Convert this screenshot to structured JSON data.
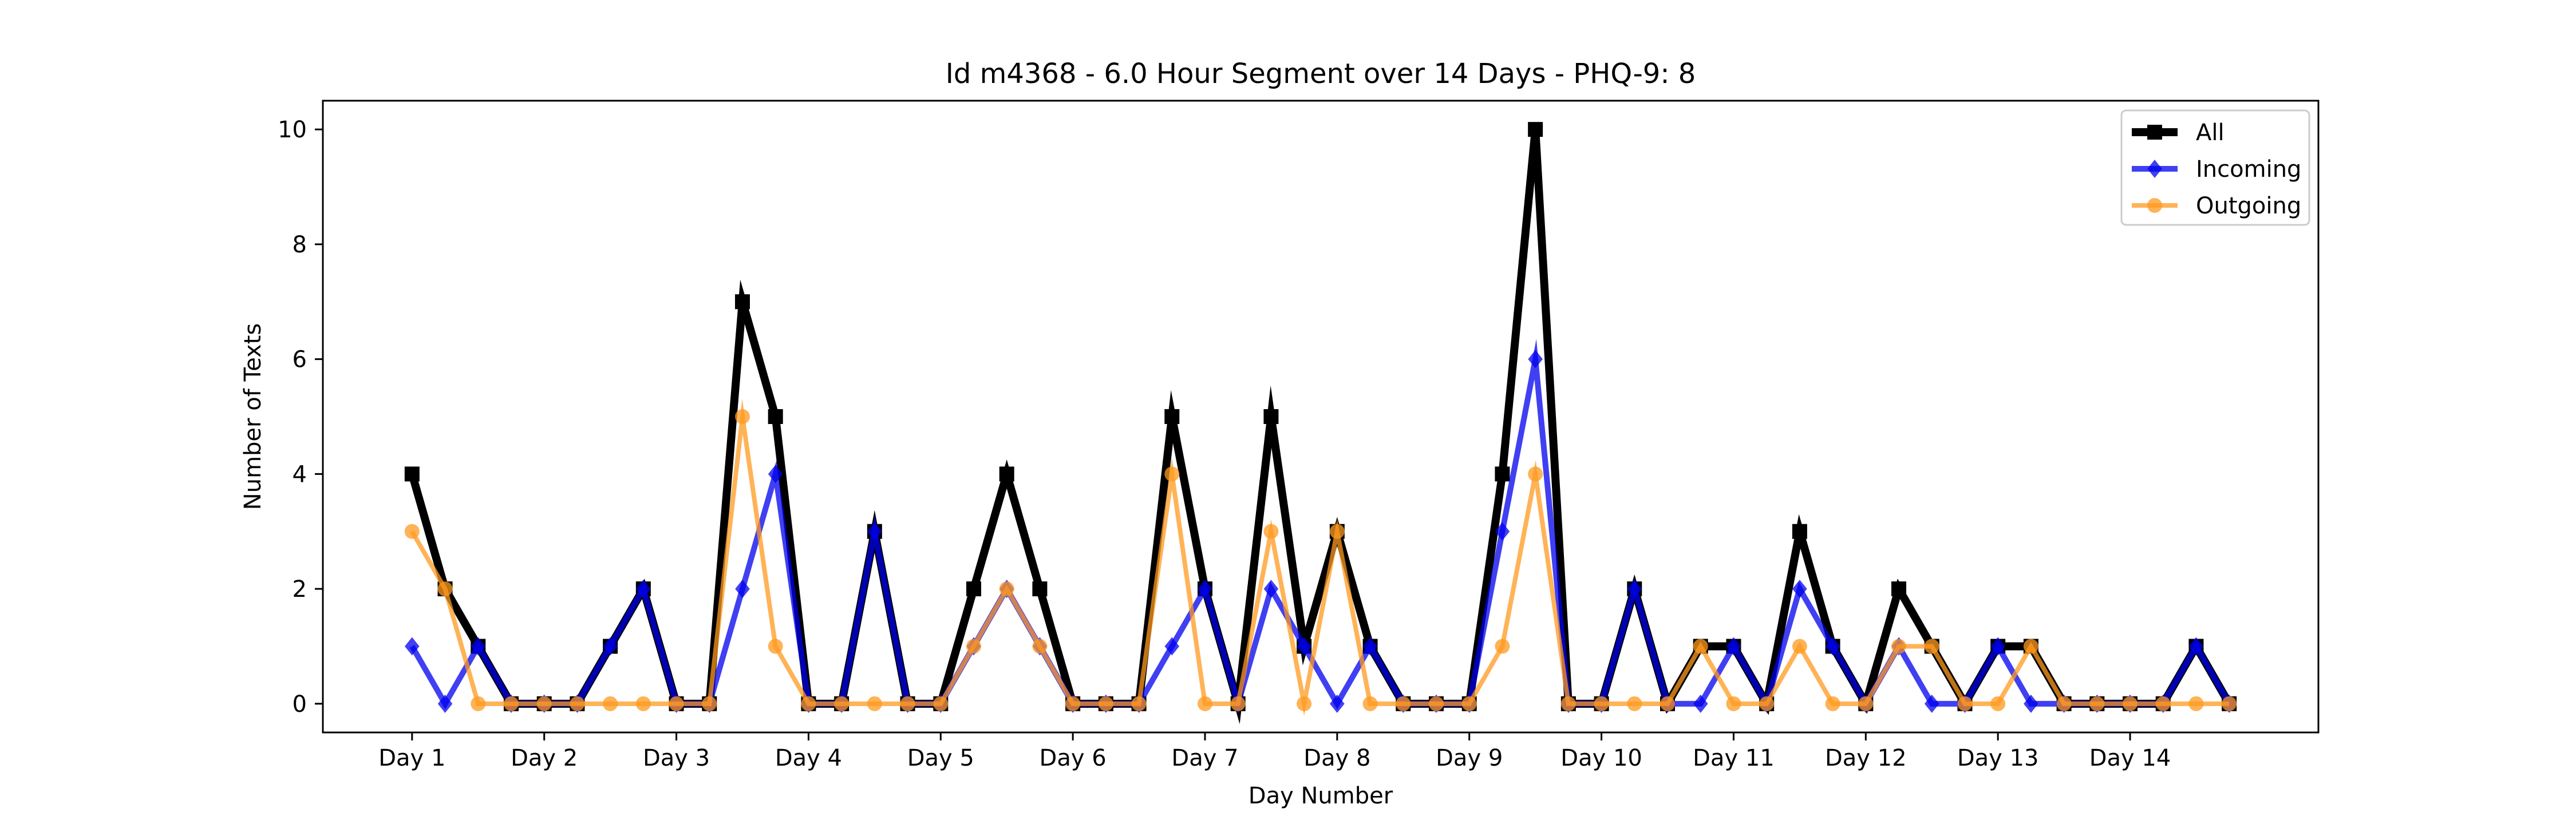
{
  "chart_data": {
    "type": "line",
    "title": "Id m4368 - 6.0 Hour Segment over 14 Days - PHQ-9: 8",
    "xlabel": "Day Number",
    "ylabel": "Number of Texts",
    "x": [
      0,
      1,
      2,
      3,
      4,
      5,
      6,
      7,
      8,
      9,
      10,
      11,
      12,
      13,
      14,
      15,
      16,
      17,
      18,
      19,
      20,
      21,
      22,
      23,
      24,
      25,
      26,
      27,
      28,
      29,
      30,
      31,
      32,
      33,
      34,
      35,
      36,
      37,
      38,
      39,
      40,
      41,
      42,
      43,
      44,
      45,
      46,
      47,
      48,
      49,
      50,
      51,
      52,
      53,
      54,
      55
    ],
    "x_ticks": [
      {
        "pos": 0,
        "label": "Day 1"
      },
      {
        "pos": 4,
        "label": "Day 2"
      },
      {
        "pos": 8,
        "label": "Day 3"
      },
      {
        "pos": 12,
        "label": "Day 4"
      },
      {
        "pos": 16,
        "label": "Day 5"
      },
      {
        "pos": 20,
        "label": "Day 6"
      },
      {
        "pos": 24,
        "label": "Day 7"
      },
      {
        "pos": 28,
        "label": "Day 8"
      },
      {
        "pos": 32,
        "label": "Day 9"
      },
      {
        "pos": 36,
        "label": "Day 10"
      },
      {
        "pos": 40,
        "label": "Day 11"
      },
      {
        "pos": 44,
        "label": "Day 12"
      },
      {
        "pos": 48,
        "label": "Day 13"
      },
      {
        "pos": 52,
        "label": "Day 14"
      }
    ],
    "xlim": [
      -2.7,
      57.7
    ],
    "ylim": [
      -0.5,
      10.5
    ],
    "y_ticks": [
      0,
      2,
      4,
      6,
      8,
      10
    ],
    "grid": false,
    "legend_position": "top-right",
    "series": [
      {
        "name": "All",
        "color": "#000000",
        "marker": "square",
        "values": [
          4,
          2,
          1,
          0,
          0,
          0,
          1,
          2,
          0,
          0,
          7,
          5,
          0,
          0,
          3,
          0,
          0,
          2,
          4,
          2,
          0,
          0,
          0,
          5,
          2,
          0,
          5,
          1,
          3,
          1,
          0,
          0,
          0,
          4,
          10,
          0,
          0,
          2,
          0,
          1,
          1,
          0,
          3,
          1,
          0,
          2,
          1,
          0,
          1,
          1,
          0,
          0,
          0,
          0,
          1,
          0
        ]
      },
      {
        "name": "Incoming",
        "color": "#0000ee",
        "marker": "diamond",
        "values": [
          1,
          0,
          1,
          0,
          0,
          0,
          1,
          2,
          0,
          0,
          2,
          4,
          0,
          0,
          3,
          0,
          0,
          1,
          2,
          1,
          0,
          0,
          0,
          1,
          2,
          0,
          2,
          1,
          0,
          1,
          0,
          0,
          0,
          3,
          6,
          0,
          0,
          2,
          0,
          0,
          1,
          0,
          2,
          1,
          0,
          1,
          0,
          0,
          1,
          0,
          0,
          0,
          0,
          0,
          1,
          0
        ]
      },
      {
        "name": "Outgoing",
        "color": "#ff9a1f",
        "marker": "circle",
        "values": [
          3,
          2,
          0,
          0,
          0,
          0,
          0,
          0,
          0,
          0,
          5,
          1,
          0,
          0,
          0,
          0,
          0,
          1,
          2,
          1,
          0,
          0,
          0,
          4,
          0,
          0,
          3,
          0,
          3,
          0,
          0,
          0,
          0,
          1,
          4,
          0,
          0,
          0,
          0,
          1,
          0,
          0,
          1,
          0,
          0,
          1,
          1,
          0,
          0,
          1,
          0,
          0,
          0,
          0,
          0,
          0
        ]
      }
    ]
  }
}
